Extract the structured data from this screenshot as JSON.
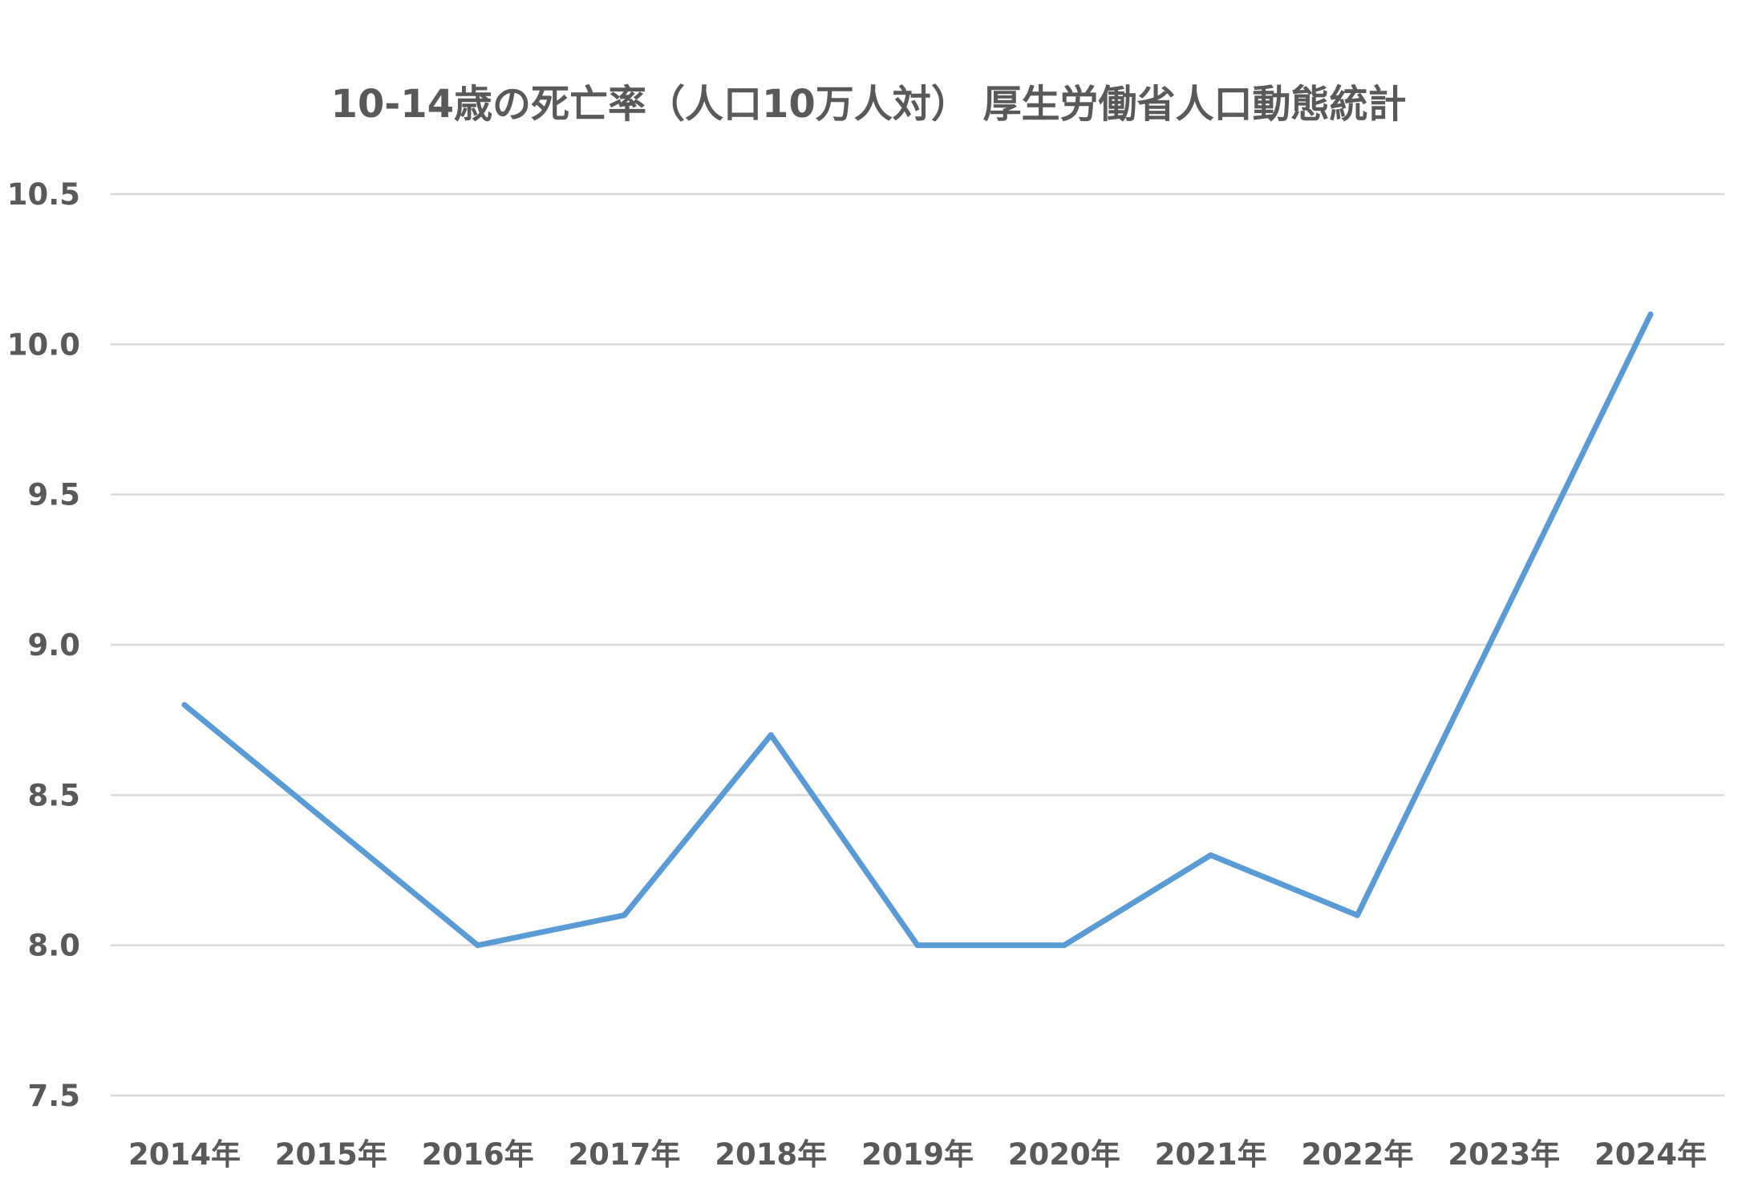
{
  "chart_data": {
    "type": "line",
    "title": "10-14歳の死亡率（人口10万人対） 厚生労働省人口動態統計",
    "xlabel": "",
    "ylabel": "",
    "categories": [
      "2014年",
      "2015年",
      "2016年",
      "2017年",
      "2018年",
      "2019年",
      "2020年",
      "2021年",
      "2022年",
      "2023年",
      "2024年"
    ],
    "series": [
      {
        "values": [
          8.8,
          8.4,
          8.0,
          8.1,
          8.7,
          8.0,
          8.0,
          8.3,
          8.1,
          9.1,
          10.1
        ]
      }
    ],
    "ylim": [
      7.5,
      10.5
    ],
    "yticks": [
      "7.5",
      "8.0",
      "8.5",
      "9.0",
      "9.5",
      "10.0",
      "10.5"
    ],
    "grid": true,
    "legend": "none",
    "colors": {
      "series": "#5b9bd5",
      "grid": "#d9d9d9",
      "text": "#595959"
    }
  }
}
